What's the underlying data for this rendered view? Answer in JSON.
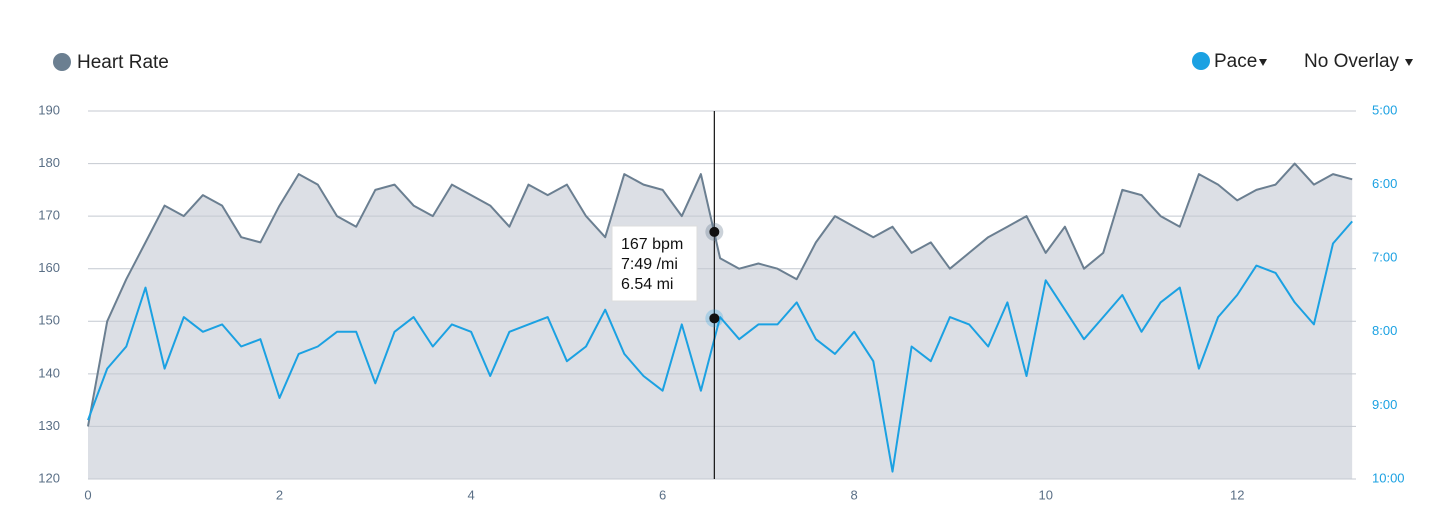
{
  "chart_data": {
    "type": "line",
    "legend_left": "Heart Rate",
    "legend_right": [
      "Pace",
      "No Overlay"
    ],
    "x": [
      0,
      0.2,
      0.4,
      0.6,
      0.8,
      1.0,
      1.2,
      1.4,
      1.6,
      1.8,
      2.0,
      2.2,
      2.4,
      2.6,
      2.8,
      3.0,
      3.2,
      3.4,
      3.6,
      3.8,
      4.0,
      4.2,
      4.4,
      4.6,
      4.8,
      5.0,
      5.2,
      5.4,
      5.6,
      5.8,
      6.0,
      6.2,
      6.4,
      6.6,
      6.8,
      7.0,
      7.2,
      7.4,
      7.6,
      7.8,
      8.0,
      8.2,
      8.4,
      8.6,
      8.8,
      9.0,
      9.2,
      9.4,
      9.6,
      9.8,
      10.0,
      10.2,
      10.4,
      10.6,
      10.8,
      11.0,
      11.2,
      11.4,
      11.6,
      11.8,
      12.0,
      12.2,
      12.4,
      12.6,
      12.8,
      13.0,
      13.2
    ],
    "series": [
      {
        "name": "Heart Rate",
        "color": "#6b7f91",
        "fill": "#dcdfe5",
        "values": [
          130,
          150,
          158,
          165,
          172,
          170,
          174,
          172,
          166,
          165,
          172,
          178,
          176,
          170,
          168,
          175,
          176,
          172,
          170,
          176,
          174,
          172,
          168,
          176,
          174,
          176,
          170,
          166,
          178,
          176,
          175,
          170,
          178,
          162,
          160,
          161,
          160,
          158,
          165,
          170,
          168,
          166,
          168,
          163,
          165,
          160,
          163,
          166,
          168,
          170,
          163,
          168,
          160,
          163,
          175,
          174,
          170,
          168,
          178,
          176,
          173,
          175,
          176,
          180,
          176,
          178,
          177
        ]
      },
      {
        "name": "Pace",
        "color": "#1ba1e2",
        "axis": "y2",
        "values": [
          9.2,
          8.5,
          8.2,
          7.4,
          8.5,
          7.8,
          8.0,
          7.9,
          8.2,
          8.1,
          8.9,
          8.3,
          8.2,
          8.0,
          8.0,
          8.7,
          8.0,
          7.8,
          8.2,
          7.9,
          8.0,
          8.6,
          8.0,
          7.9,
          7.8,
          8.4,
          8.2,
          7.7,
          8.3,
          8.6,
          8.8,
          7.9,
          8.8,
          7.8,
          8.1,
          7.9,
          7.9,
          7.6,
          8.1,
          8.3,
          8.0,
          8.4,
          9.9,
          8.2,
          8.4,
          7.8,
          7.9,
          8.2,
          7.6,
          8.6,
          7.3,
          7.7,
          8.1,
          7.8,
          7.5,
          8.0,
          7.6,
          7.4,
          8.5,
          7.8,
          7.5,
          7.1,
          7.2,
          7.6,
          7.9,
          6.8,
          6.5
        ]
      }
    ],
    "xlim": [
      0,
      13.24
    ],
    "xticks": [
      0,
      2,
      4,
      6,
      8,
      10,
      12
    ],
    "ylim": [
      120,
      190
    ],
    "yticks": [
      120,
      130,
      140,
      150,
      160,
      170,
      180,
      190
    ],
    "y2lim": [
      10,
      5
    ],
    "y2ticks": [
      {
        "value": 5,
        "label": "5:00"
      },
      {
        "value": 6,
        "label": "6:00"
      },
      {
        "value": 7,
        "label": "7:00"
      },
      {
        "value": 8,
        "label": "8:00"
      },
      {
        "value": 9,
        "label": "9:00"
      },
      {
        "value": 10,
        "label": "10:00"
      }
    ],
    "grid": true,
    "cursor": {
      "x": 6.54,
      "heart_rate": 167,
      "pace": 7.817,
      "labels": [
        "167 bpm",
        "7:49 /mi",
        "6.54 mi"
      ]
    }
  }
}
